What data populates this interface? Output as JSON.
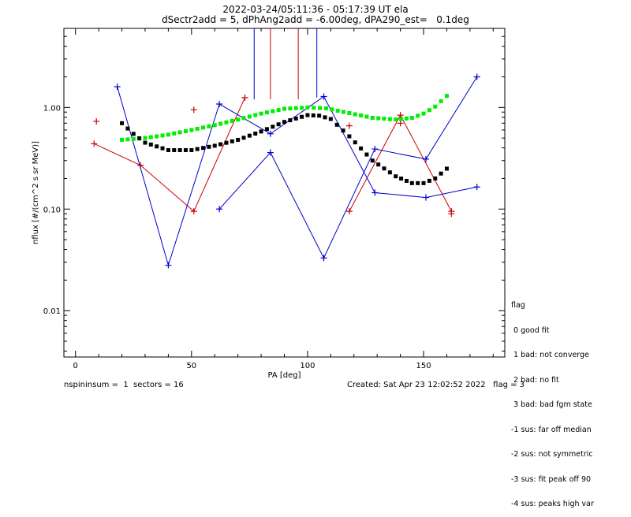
{
  "title_line1": "2022-03-24/05:11:36 - 05:17:39 UT ela",
  "title_line2": "dSectr2add = 5, dPhAng2add = -6.00deg, dPA290_est=   0.1deg",
  "footer_left": "nspininsum =  1  sectors = 16",
  "footer_right": "Created: Sat Apr 23 12:02:52 2022   flag = 3",
  "legend": {
    "header": "flag",
    "items": [
      " 0 good fit",
      " 1 bad: not converge",
      " 2 bad: no fit",
      " 3 bad: bad fgm state",
      "-1 sus: far off median",
      "-2 sus: not symmetric",
      "-3 sus: fit peak off 90",
      "-4 sus: peaks high var"
    ]
  },
  "chart_data": {
    "type": "scatter",
    "xlabel": "PA [deg]",
    "ylabel": "nflux [#/(cm^2 s sr MeV)]",
    "xlim": [
      -5,
      185
    ],
    "ylim": [
      0.0035,
      6.0
    ],
    "ylog": true,
    "xticks": [
      0,
      50,
      100,
      150
    ],
    "xtick_labels": [
      "0",
      "50",
      "100",
      "150"
    ],
    "yticks": [
      0.01,
      0.1,
      1.0
    ],
    "ytick_labels": [
      "0.01",
      "0.10",
      "1.00"
    ],
    "grid": false,
    "series": [
      {
        "color": "#cc0000",
        "style": "line+cross",
        "x": [
          8,
          28,
          51,
          73
        ],
        "y": [
          0.44,
          0.27,
          0.095,
          1.25
        ]
      },
      {
        "color": "#cc0000",
        "style": "line+cross",
        "x": [
          118,
          140,
          162
        ],
        "y": [
          0.095,
          0.84,
          0.095
        ]
      },
      {
        "color": "#cc0000",
        "style": "cross",
        "x": [
          9,
          51,
          118,
          140,
          162
        ],
        "y": [
          0.73,
          0.95,
          0.66,
          0.7,
          0.09
        ]
      },
      {
        "color": "#cc0000",
        "style": "vline",
        "x": [
          84,
          96
        ],
        "y": [
          1.2,
          1.2
        ]
      },
      {
        "color": "#0000cc",
        "style": "line+cross",
        "x": [
          18,
          40,
          62,
          84,
          107,
          129,
          151,
          173
        ],
        "y": [
          1.6,
          0.028,
          1.08,
          0.55,
          1.28,
          0.145,
          0.13,
          0.165
        ]
      },
      {
        "color": "#0000cc",
        "style": "line+cross",
        "x": [
          62,
          84,
          107,
          129,
          151,
          173
        ],
        "y": [
          0.1,
          0.36,
          0.033,
          0.39,
          0.31,
          2.0
        ]
      },
      {
        "color": "#0000cc",
        "style": "vline",
        "x": [
          77,
          104
        ],
        "y": [
          1.2,
          1.25
        ]
      },
      {
        "color": "#00ee00",
        "style": "dots",
        "x": [
          20,
          30,
          40,
          50,
          60,
          70,
          80,
          90,
          100,
          108,
          118,
          128,
          138,
          145,
          150,
          155,
          160
        ],
        "y": [
          0.48,
          0.5,
          0.54,
          0.6,
          0.67,
          0.76,
          0.87,
          0.97,
          1.0,
          0.98,
          0.88,
          0.79,
          0.76,
          0.79,
          0.87,
          1.02,
          1.3
        ]
      },
      {
        "color": "#000000",
        "style": "dots",
        "x": [
          20,
          25,
          30,
          40,
          50,
          60,
          70,
          80,
          90,
          100,
          105,
          110,
          118,
          128,
          138,
          145,
          150,
          155,
          160
        ],
        "y": [
          0.7,
          0.55,
          0.45,
          0.38,
          0.38,
          0.42,
          0.48,
          0.58,
          0.72,
          0.84,
          0.83,
          0.77,
          0.52,
          0.3,
          0.21,
          0.18,
          0.18,
          0.2,
          0.25
        ]
      }
    ]
  }
}
